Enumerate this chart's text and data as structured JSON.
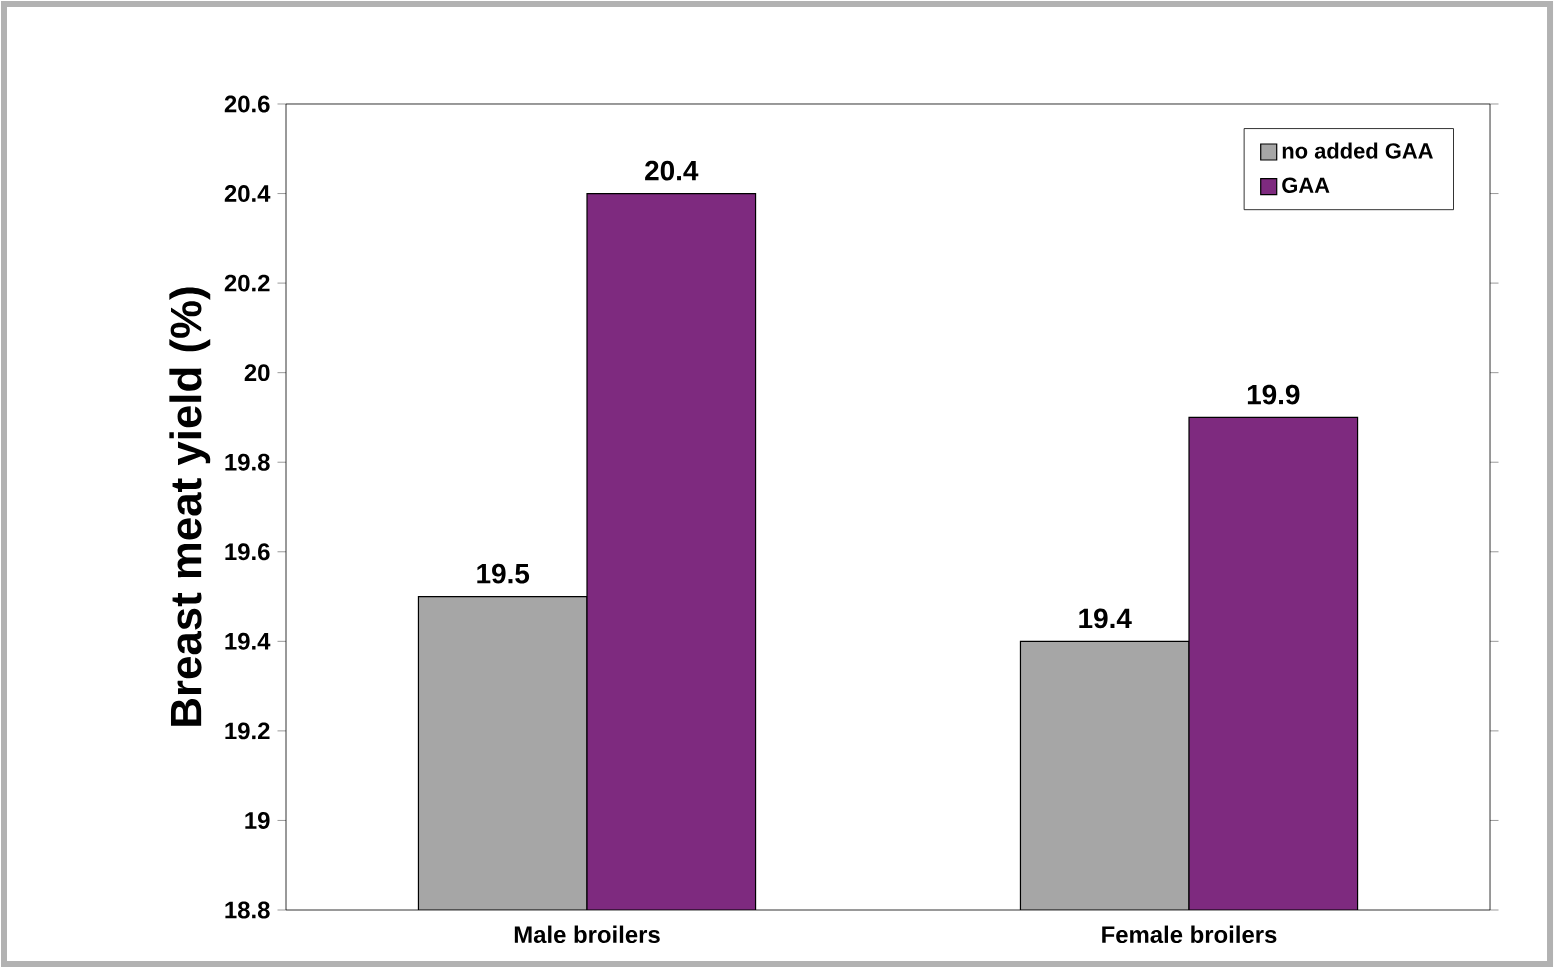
{
  "chart_data": {
    "type": "bar",
    "ylabel": "Breast meat yield (%)",
    "categories": [
      "Male broilers",
      "Female broilers"
    ],
    "series": [
      {
        "name": "no added GAA",
        "color": "#a6a6a6",
        "values": [
          19.5,
          19.4
        ]
      },
      {
        "name": "GAA",
        "color": "#7e2a7f",
        "values": [
          20.4,
          19.9
        ]
      }
    ],
    "ylim": [
      18.8,
      20.6
    ],
    "yticks": [
      18.8,
      19,
      19.2,
      19.4,
      19.6,
      19.8,
      20,
      20.2,
      20.4,
      20.6
    ],
    "data_labels": true,
    "legend": "top right",
    "grid": false
  }
}
